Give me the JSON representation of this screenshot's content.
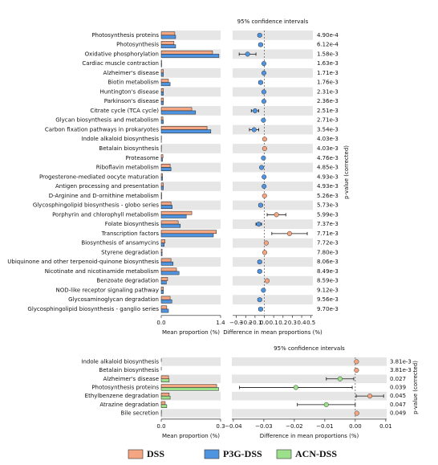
{
  "chart_data": [
    {
      "type": "extended_error_bar",
      "title": "95% confidence intervals",
      "categories": [
        "Photosynthesis proteins",
        "Photosynthesis",
        "Oxidative phosphorylation",
        "Cardiac muscle contraction",
        "Alzheimer's disease",
        "Biotin metabolism",
        "Huntington's disease",
        "Parkinson's disease",
        "Citrate cycle (TCA cycle)",
        "Glycan biosynthesis and metabolism",
        "Carbon fixation pathways in prokaryotes",
        "Indole alkaloid biosynthesis",
        "Betalain biosynthesis",
        "Proteasome",
        "Riboflavin metabolism",
        "Progesterone-mediated oocyte maturation",
        "Antigen processing and presentation",
        "D-Arginine and D-ornithine metabolism",
        "Glycosphingolipid biosynthesis - globo series",
        "Porphyrin and chlorophyll metabolism",
        "Folate biosynthesis",
        "Transcription factors",
        "Biosynthesis of ansamycins",
        "Styrene degradation",
        "Ubiquinone and other terpenoid-quinone biosynthesis",
        "Nicotinate and nicotinamide metabolism",
        "Benzoate degradation",
        "NOD-like receptor signaling pathway",
        "Glycosaminoglycan degradation",
        "Glycosphingolipid biosynthesis - ganglio series"
      ],
      "series": [
        {
          "name": "DSS",
          "color": "#f4a582",
          "values": [
            0.32,
            0.3,
            1.21,
            0.01,
            0.05,
            0.17,
            0.05,
            0.05,
            0.72,
            0.04,
            1.08,
            0.005,
            0.005,
            0.04,
            0.21,
            0.03,
            0.05,
            0.01,
            0.23,
            0.72,
            0.4,
            1.3,
            0.09,
            0.02,
            0.23,
            0.36,
            0.15,
            0.05,
            0.21,
            0.13
          ]
        },
        {
          "name": "P3G-DSS",
          "color": "#4f94e0",
          "values": [
            0.34,
            0.34,
            1.36,
            0.01,
            0.05,
            0.21,
            0.05,
            0.05,
            0.81,
            0.05,
            1.17,
            0.003,
            0.003,
            0.03,
            0.23,
            0.03,
            0.05,
            0.01,
            0.26,
            0.59,
            0.45,
            1.23,
            0.07,
            0.02,
            0.28,
            0.42,
            0.12,
            0.05,
            0.25,
            0.17
          ]
        }
      ],
      "differences": [
        -0.05,
        -0.04,
        -0.18,
        -0.005,
        -0.005,
        -0.04,
        -0.005,
        -0.005,
        -0.1,
        -0.01,
        -0.11,
        0.003,
        0.003,
        -0.01,
        -0.03,
        -0.003,
        -0.003,
        0.002,
        -0.04,
        0.13,
        -0.06,
        0.27,
        0.02,
        0.004,
        -0.05,
        -0.05,
        0.03,
        -0.01,
        -0.05,
        -0.04
      ],
      "errors": [
        0.02,
        0.02,
        0.09,
        0.004,
        0.004,
        0.02,
        0.004,
        0.004,
        0.04,
        0.005,
        0.05,
        0.003,
        0.003,
        0.008,
        0.015,
        0.003,
        0.003,
        0.003,
        0.02,
        0.1,
        0.03,
        0.19,
        0.012,
        0.004,
        0.02,
        0.02,
        0.015,
        0.008,
        0.02,
        0.02
      ],
      "p_values": [
        "4.90e-4",
        "6.12e-4",
        "1.58e-3",
        "1.63e-3",
        "1.71e-3",
        "1.76e-3",
        "2.31e-3",
        "2.36e-3",
        "2.51e-3",
        "2.71e-3",
        "3.54e-3",
        "4.03e-3",
        "4.03e-3",
        "4.76e-3",
        "4.85e-3",
        "4.93e-3",
        "4.93e-3",
        "5.26e-3",
        "5.73e-3",
        "5.99e-3",
        "7.37e-3",
        "7.71e-3",
        "7.72e-3",
        "7.80e-3",
        "8.06e-3",
        "8.49e-3",
        "8.59e-3",
        "9.12e-3",
        "9.56e-3",
        "9.70e-3"
      ],
      "xlabel": "Mean proportion (%)",
      "xlim": [
        0,
        1.4
      ],
      "xticks": [
        {
          "value": 0,
          "label": "0.0"
        },
        1.4
      ],
      "diff_xlabel": "Difference in mean proportions (%)",
      "diff_xlim": [
        -0.34,
        0.52
      ],
      "diff_xticks": [
        {
          "value": -0.3,
          "label": "−0.3"
        },
        {
          "value": -0.2,
          "label": "−0.2"
        },
        {
          "value": -0.1,
          "label": "−0.1"
        },
        {
          "value": 0,
          "label": "0.0"
        },
        0.1,
        0.2,
        0.3,
        0.4,
        0.5
      ],
      "p_label": "p-value (corrected)"
    },
    {
      "type": "extended_error_bar",
      "title": "95% confidence intervals",
      "categories": [
        "Indole alkaloid biosynthesis",
        "Betalain biosynthesis",
        "Alzheimer's disease",
        "Photosynthesis proteins",
        "Ethylbenzene degradation",
        "Atrazine degradation",
        "Bile secretion"
      ],
      "series": [
        {
          "name": "DSS",
          "color": "#f4a582",
          "values": [
            0.0004,
            0.0004,
            0.037,
            0.28,
            0.04,
            0.02,
            0.001
          ]
        },
        {
          "name": "ACN-DSS",
          "color": "#9de08b",
          "values": [
            0.0,
            0.0,
            0.04,
            0.29,
            0.045,
            0.028,
            0.0005
          ]
        }
      ],
      "differences": [
        0.0004,
        0.0004,
        -0.005,
        -0.0195,
        0.0048,
        -0.0095,
        0.0005
      ],
      "errors": [
        0.0002,
        0.0002,
        0.0045,
        0.0185,
        0.0045,
        0.0095,
        0.0004
      ],
      "p_values": [
        "3.81e-3",
        "3.81e-3",
        "0.027",
        "0.039",
        "0.045",
        "0.047",
        "0.049"
      ],
      "xlabel": "Mean proportion (%)",
      "xlim": [
        0,
        0.3
      ],
      "xticks": [
        {
          "value": 0,
          "label": "0.0"
        },
        0.3
      ],
      "diff_xlabel": "Difference in mean proportions (%)",
      "diff_xlim": [
        -0.0405,
        0.0103
      ],
      "diff_xticks": [
        {
          "value": -0.04,
          "label": "−0.04"
        },
        {
          "value": -0.03,
          "label": "−0.03"
        },
        {
          "value": -0.02,
          "label": "−0.02"
        },
        {
          "value": -0.01,
          "label": "−0.01"
        },
        {
          "value": 0,
          "label": "0.00"
        },
        0.01
      ],
      "p_label": "p-value (corrected)"
    }
  ]
}
